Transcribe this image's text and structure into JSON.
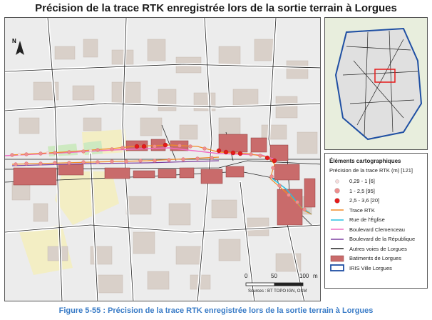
{
  "title": "Précision de la trace RTK enregistrée lors de la sortie terrain à Lorgues",
  "caption": "Figure 5-55 : Précision de la trace RTK enregistrée lors de la sortie terrain à Lorgues",
  "north_label": "N",
  "scale": {
    "ticks": [
      "0",
      "50",
      "100"
    ],
    "unit": "m"
  },
  "sources": "Sources : BT TOPO IGN, OSM",
  "legend": {
    "title": "Éléments cartographiques",
    "subtitle": "Précision de la trace RTK (m) [121]",
    "items": [
      {
        "label": "0,29 - 1 [6]",
        "symbol": "dot-light",
        "color": "#f7dcdc"
      },
      {
        "label": "1 - 2,5 [95]",
        "symbol": "dot-mid",
        "color": "#ee8f8f"
      },
      {
        "label": "2,5 - 3,6 [20]",
        "symbol": "dot-dark",
        "color": "#e51b1b"
      },
      {
        "label": "Trace RTK",
        "symbol": "line",
        "color": "#f28c28"
      },
      {
        "label": "Rue de l'Église",
        "symbol": "line",
        "color": "#27c0e0"
      },
      {
        "label": "Boulevard Clemenceau",
        "symbol": "line",
        "color": "#f06ec4"
      },
      {
        "label": "Boulevard de la République",
        "symbol": "line",
        "color": "#7b3fa0"
      },
      {
        "label": "Autres voies de Lorgues",
        "symbol": "line",
        "color": "#222222"
      },
      {
        "label": "Batiments de Lorgues",
        "symbol": "rect",
        "color": "#c96b6b"
      },
      {
        "label": "IRIS Ville Lorgues",
        "symbol": "outline",
        "color": "#1f4fa3"
      }
    ]
  },
  "colors": {
    "background": "#ececec",
    "osm_building": "#d9d0c9",
    "road": "#ffffff",
    "highlight_building": "#c96b6b",
    "green_area": "#cde9c1",
    "yellow_area": "#f3eec4"
  }
}
